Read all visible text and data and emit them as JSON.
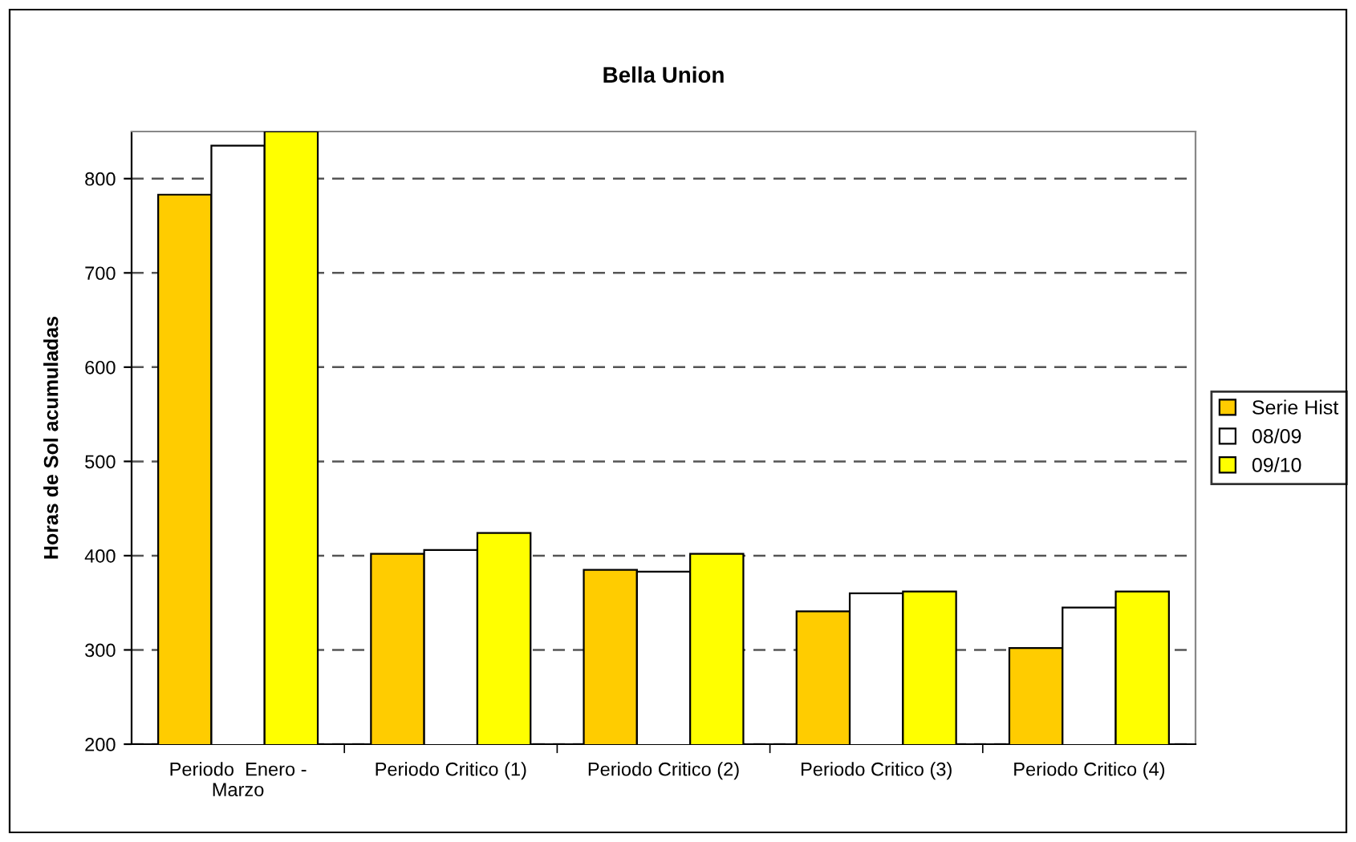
{
  "chart_data": {
    "type": "bar",
    "title": "Bella Union",
    "ylabel": "Horas de Sol acumuladas",
    "categories": [
      "Periodo  Enero -\nMarzo",
      "Periodo Critico (1)",
      "Periodo Critico (2)",
      "Periodo Critico (3)",
      "Periodo Critico (4)"
    ],
    "series": [
      {
        "name": "Serie Hist",
        "color": "#ffcc00",
        "values": [
          783,
          402,
          385,
          341,
          302
        ]
      },
      {
        "name": "08/09",
        "color": "#ffffff",
        "values": [
          835,
          406,
          383,
          360,
          345
        ]
      },
      {
        "name": "09/10",
        "color": "#ffff00",
        "values": [
          850,
          424,
          402,
          362,
          362
        ]
      }
    ],
    "ylim": [
      200,
      850
    ],
    "yticks": [
      200,
      300,
      400,
      500,
      600,
      700,
      800
    ],
    "grid": "y",
    "legend": "right"
  }
}
